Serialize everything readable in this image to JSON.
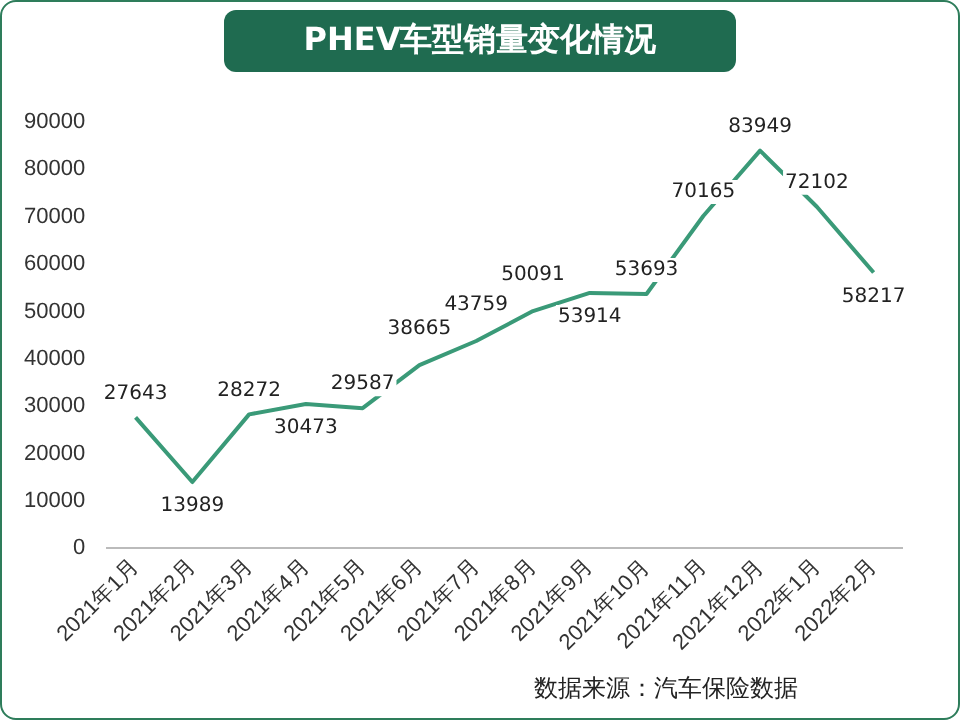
{
  "chart_data": {
    "type": "line",
    "title": "PHEV车型销量变化情况",
    "categories": [
      "2021年1月",
      "2021年2月",
      "2021年3月",
      "2021年4月",
      "2021年5月",
      "2021年6月",
      "2021年7月",
      "2021年8月",
      "2021年9月",
      "2021年10月",
      "2021年11月",
      "2021年12月",
      "2022年1月",
      "2022年2月"
    ],
    "series": [
      {
        "color": "#3a9a78",
        "values": [
          27643,
          13989,
          28272,
          30473,
          29587,
          38665,
          43759,
          50091,
          53914,
          53693,
          70165,
          83949,
          72102,
          58217
        ]
      }
    ],
    "ylim": [
      0,
      90000
    ],
    "yticks": [
      0,
      10000,
      20000,
      30000,
      40000,
      50000,
      60000,
      70000,
      80000,
      90000
    ],
    "grid": false,
    "legend": false,
    "marker": "none",
    "line_style": "solid",
    "data_labels": true,
    "annotations": [
      "数据来源：汽车保险数据"
    ]
  }
}
